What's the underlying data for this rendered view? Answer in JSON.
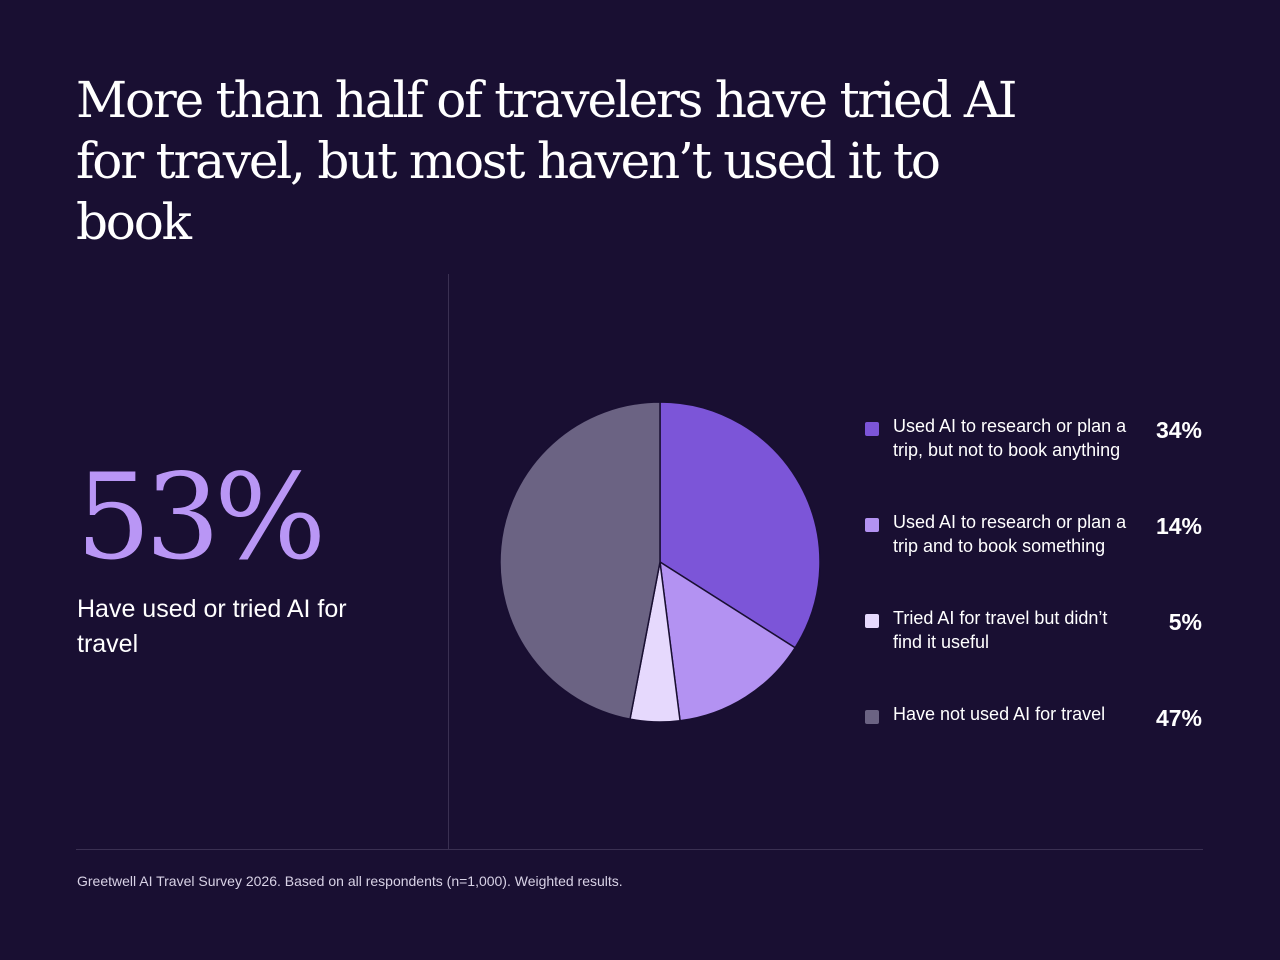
{
  "title": "More than half of travelers have tried AI for travel, but most haven’t used it to book",
  "highlight": {
    "value": "53%",
    "caption": "Have used or tried AI for travel"
  },
  "chart_data": {
    "type": "pie",
    "legend_position": "right",
    "slices": [
      {
        "label": "Used AI to research or plan a trip, but not to book anything",
        "value": 34,
        "display": "34%",
        "color": "#7c55d8"
      },
      {
        "label": "Used AI to research or plan a trip and to book something",
        "value": 14,
        "display": "14%",
        "color": "#b392f2"
      },
      {
        "label": "Tried AI for travel but didn’t find it useful",
        "value": 5,
        "display": "5%",
        "color": "#e6d9fd"
      },
      {
        "label": "Have not used AI for travel",
        "value": 47,
        "display": "47%",
        "color": "#6b6383"
      }
    ]
  },
  "source": "Greetwell AI Travel Survey 2026. Based on all respondents (n=1,000). Weighted results."
}
